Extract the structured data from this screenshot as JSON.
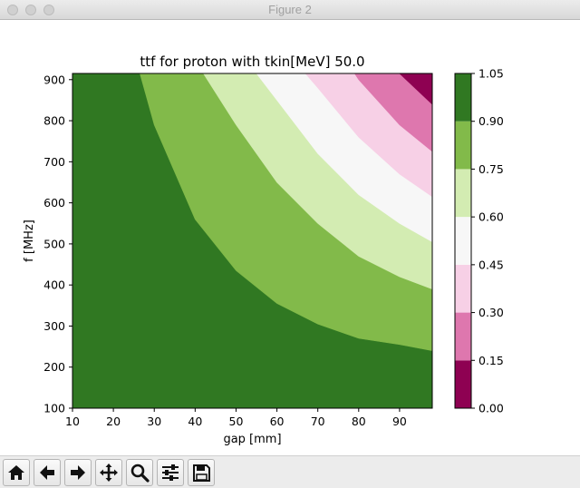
{
  "window": {
    "title": "Figure 2"
  },
  "toolbar": {
    "buttons": [
      {
        "name": "home-icon"
      },
      {
        "name": "back-arrow-icon"
      },
      {
        "name": "forward-arrow-icon"
      },
      {
        "name": "pan-icon"
      },
      {
        "name": "zoom-icon"
      },
      {
        "name": "configure-subplots-icon"
      },
      {
        "name": "save-icon"
      }
    ]
  },
  "chart_data": {
    "type": "heatmap",
    "subtype": "filled-contour",
    "title": "ttf for proton with tkin[MeV] 50.0",
    "xlabel": "gap [mm]",
    "ylabel": "f [MHz]",
    "xlim": [
      10,
      98
    ],
    "ylim": [
      100,
      915
    ],
    "xticks": [
      10,
      20,
      30,
      40,
      50,
      60,
      70,
      80,
      90
    ],
    "yticks": [
      100,
      200,
      300,
      400,
      500,
      600,
      700,
      800,
      900
    ],
    "levels": [
      0.0,
      0.15,
      0.3,
      0.45,
      0.6,
      0.75,
      0.9,
      1.05
    ],
    "level_labels": [
      "0.00",
      "0.15",
      "0.30",
      "0.45",
      "0.60",
      "0.75",
      "0.90",
      "1.05"
    ],
    "colors": [
      "#8e0152",
      "#de77ae",
      "#f7d0e6",
      "#f7f7f7",
      "#d3ecb2",
      "#82ba4a",
      "#307822"
    ],
    "boundaries": [
      {
        "level": 0.9,
        "points": [
          [
            26.5,
            915
          ],
          [
            30,
            790
          ],
          [
            40,
            560
          ],
          [
            50,
            435
          ],
          [
            60,
            355
          ],
          [
            70,
            305
          ],
          [
            80,
            270
          ],
          [
            90,
            255
          ],
          [
            98,
            240
          ]
        ]
      },
      {
        "level": 0.75,
        "points": [
          [
            42,
            915
          ],
          [
            50,
            790
          ],
          [
            60,
            650
          ],
          [
            70,
            550
          ],
          [
            80,
            470
          ],
          [
            90,
            420
          ],
          [
            98,
            390
          ]
        ]
      },
      {
        "level": 0.6,
        "points": [
          [
            55,
            915
          ],
          [
            60,
            850
          ],
          [
            70,
            720
          ],
          [
            80,
            620
          ],
          [
            90,
            550
          ],
          [
            98,
            505
          ]
        ]
      },
      {
        "level": 0.45,
        "points": [
          [
            67,
            915
          ],
          [
            70,
            880
          ],
          [
            80,
            760
          ],
          [
            90,
            670
          ],
          [
            98,
            615
          ]
        ]
      },
      {
        "level": 0.3,
        "points": [
          [
            79,
            915
          ],
          [
            80,
            900
          ],
          [
            90,
            790
          ],
          [
            98,
            725
          ]
        ]
      },
      {
        "level": 0.15,
        "points": [
          [
            90,
            915
          ],
          [
            98,
            840
          ]
        ]
      }
    ],
    "colorbar": {
      "ticks": [
        "0.00",
        "0.15",
        "0.30",
        "0.45",
        "0.60",
        "0.75",
        "0.90",
        "1.05"
      ]
    }
  }
}
